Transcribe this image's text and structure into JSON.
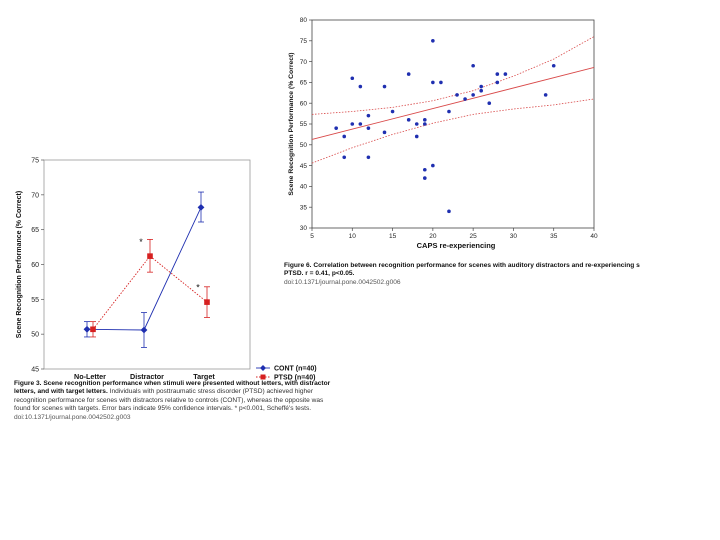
{
  "figure6": {
    "caption_label": "Figure 6.",
    "caption_text": "Correlation between recognition performance for scenes with auditory distractors and re-experiencing s",
    "caption_stats": "PTSD. r = 0.41, p<0.05.",
    "doi": "doi:10.1371/journal.pone.0042502.g006"
  },
  "figure3": {
    "caption_label": "Figure 3.",
    "caption_text": "Scene recognition performance when stimuli were presented without letters, with distractor letters, and with target letters.",
    "caption_body": "Individuals with posttraumatic stress disorder (PTSD) achieved higher recognition performance for scenes with distractors relative to controls (CONT), whereas the opposite was found for scenes with targets. Error bars indicate 95% confidence intervals. * p<0.001, Scheffé's tests.",
    "doi": "doi:10.1371/journal.pone.0042502.g003"
  },
  "chart_data": [
    {
      "id": "fig6",
      "type": "scatter",
      "xlabel": "CAPS re-experiencing",
      "ylabel": "Scene Recognition Performance (% Correct)",
      "xlim": [
        5,
        40
      ],
      "ylim": [
        30,
        80
      ],
      "xticks": [
        "5",
        "10",
        "15",
        "20",
        "25",
        "30",
        "35",
        "40"
      ],
      "yticks": [
        "30",
        "35",
        "40",
        "45",
        "50",
        "55",
        "60",
        "65",
        "70",
        "75",
        "80"
      ],
      "grid": false,
      "colors": {
        "points": "#1f2fb0",
        "fit": "#d94a4a"
      },
      "points": [
        [
          8,
          54
        ],
        [
          9,
          52
        ],
        [
          9,
          47
        ],
        [
          10,
          66
        ],
        [
          10,
          55
        ],
        [
          11,
          64
        ],
        [
          11,
          55
        ],
        [
          12,
          57
        ],
        [
          12,
          54
        ],
        [
          12,
          47
        ],
        [
          14,
          64
        ],
        [
          14,
          53
        ],
        [
          15,
          58
        ],
        [
          17,
          67
        ],
        [
          17,
          56
        ],
        [
          18,
          55
        ],
        [
          18,
          52
        ],
        [
          19,
          56
        ],
        [
          19,
          55
        ],
        [
          19,
          44
        ],
        [
          19,
          42
        ],
        [
          20,
          75
        ],
        [
          20,
          65
        ],
        [
          20,
          45
        ],
        [
          21,
          65
        ],
        [
          22,
          58
        ],
        [
          22,
          34
        ],
        [
          23,
          62
        ],
        [
          24,
          61
        ],
        [
          25,
          69
        ],
        [
          25,
          62
        ],
        [
          26,
          64
        ],
        [
          26,
          63
        ],
        [
          27,
          60
        ],
        [
          28,
          67
        ],
        [
          28,
          65
        ],
        [
          29,
          67
        ],
        [
          34,
          62
        ],
        [
          35,
          69
        ]
      ],
      "fit": {
        "x": [
          5,
          40
        ],
        "y": [
          51.3,
          68.6
        ]
      },
      "ci_upper": {
        "x": [
          5,
          10,
          15,
          20,
          25,
          30,
          35,
          40
        ],
        "y": [
          57.3,
          58.0,
          59.0,
          60.6,
          63.0,
          66.5,
          70.6,
          76.0
        ]
      },
      "ci_lower": {
        "x": [
          5,
          10,
          15,
          20,
          25,
          30,
          35,
          40
        ],
        "y": [
          45.6,
          49.3,
          52.5,
          55.2,
          57.3,
          58.6,
          59.6,
          61.0
        ]
      }
    },
    {
      "id": "fig3",
      "type": "line",
      "ylabel": "Scene Recognition Performance (% Correct)",
      "categories": [
        "No-Letter",
        "Distractor",
        "Target"
      ],
      "ylim": [
        45,
        75
      ],
      "yticks": [
        "45",
        "50",
        "55",
        "60",
        "65",
        "70",
        "75"
      ],
      "grid": false,
      "legend_position": "bottom-right",
      "series": [
        {
          "name": "CONT (n=40)",
          "color": "#1f2fb0",
          "values": [
            50.7,
            50.6,
            68.2
          ],
          "err_low": [
            49.6,
            48.1,
            66.1
          ],
          "err_high": [
            51.8,
            53.1,
            70.4
          ]
        },
        {
          "name": "PTSD (n=40)",
          "color": "#d62020",
          "values": [
            50.7,
            61.2,
            54.6
          ],
          "err_low": [
            49.6,
            58.9,
            52.4
          ],
          "err_high": [
            51.8,
            63.6,
            56.8
          ]
        }
      ],
      "annotations": [
        {
          "text": "*",
          "category": "Distractor",
          "y": 62.8
        },
        {
          "text": "*",
          "category": "Target",
          "y": 56.3
        }
      ]
    }
  ]
}
